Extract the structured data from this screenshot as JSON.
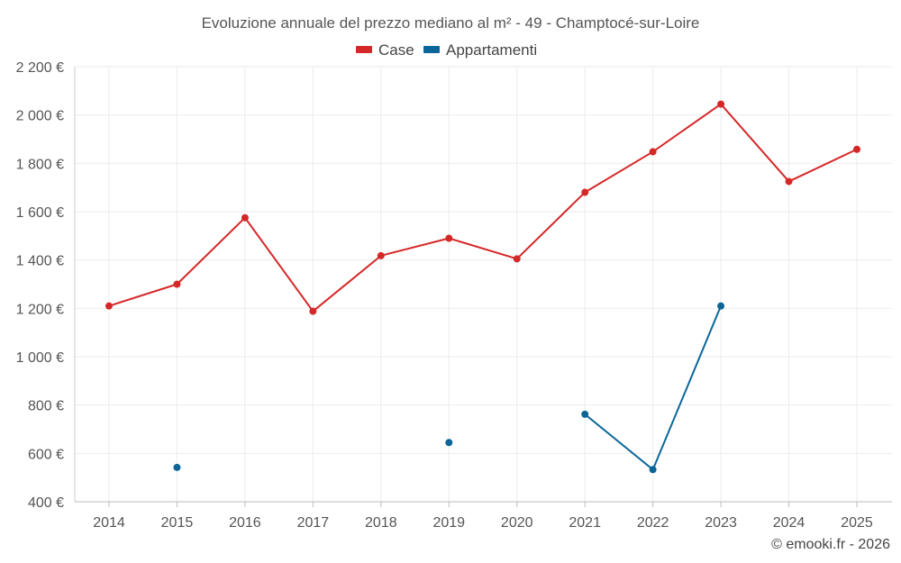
{
  "chart_data": {
    "type": "line",
    "title": "Evoluzione annuale del prezzo mediano al m² - 49 - Champtocé-sur-Loire",
    "categories": [
      "2014",
      "2015",
      "2016",
      "2017",
      "2018",
      "2019",
      "2020",
      "2021",
      "2022",
      "2023",
      "2024",
      "2025"
    ],
    "ylim": [
      400,
      2200
    ],
    "yticks": [
      400,
      600,
      800,
      1000,
      1200,
      1400,
      1600,
      1800,
      2000,
      2200
    ],
    "ytick_labels": [
      "400 €",
      "600 €",
      "800 €",
      "1 000 €",
      "1 200 €",
      "1 400 €",
      "1 600 €",
      "1 800 €",
      "2 000 €",
      "2 200 €"
    ],
    "grid": true,
    "legend_position": "top-center",
    "series": [
      {
        "name": "Case",
        "color": "#d62728",
        "values": [
          1210,
          1300,
          1575,
          1188,
          1418,
          1490,
          1405,
          1680,
          1848,
          2045,
          1725,
          1858
        ]
      },
      {
        "name": "Appartamenti",
        "color": "#0a6699",
        "values": [
          null,
          542,
          null,
          null,
          null,
          645,
          null,
          762,
          533,
          1210,
          null,
          null
        ]
      }
    ],
    "credit": "© emooki.fr - 2026"
  }
}
